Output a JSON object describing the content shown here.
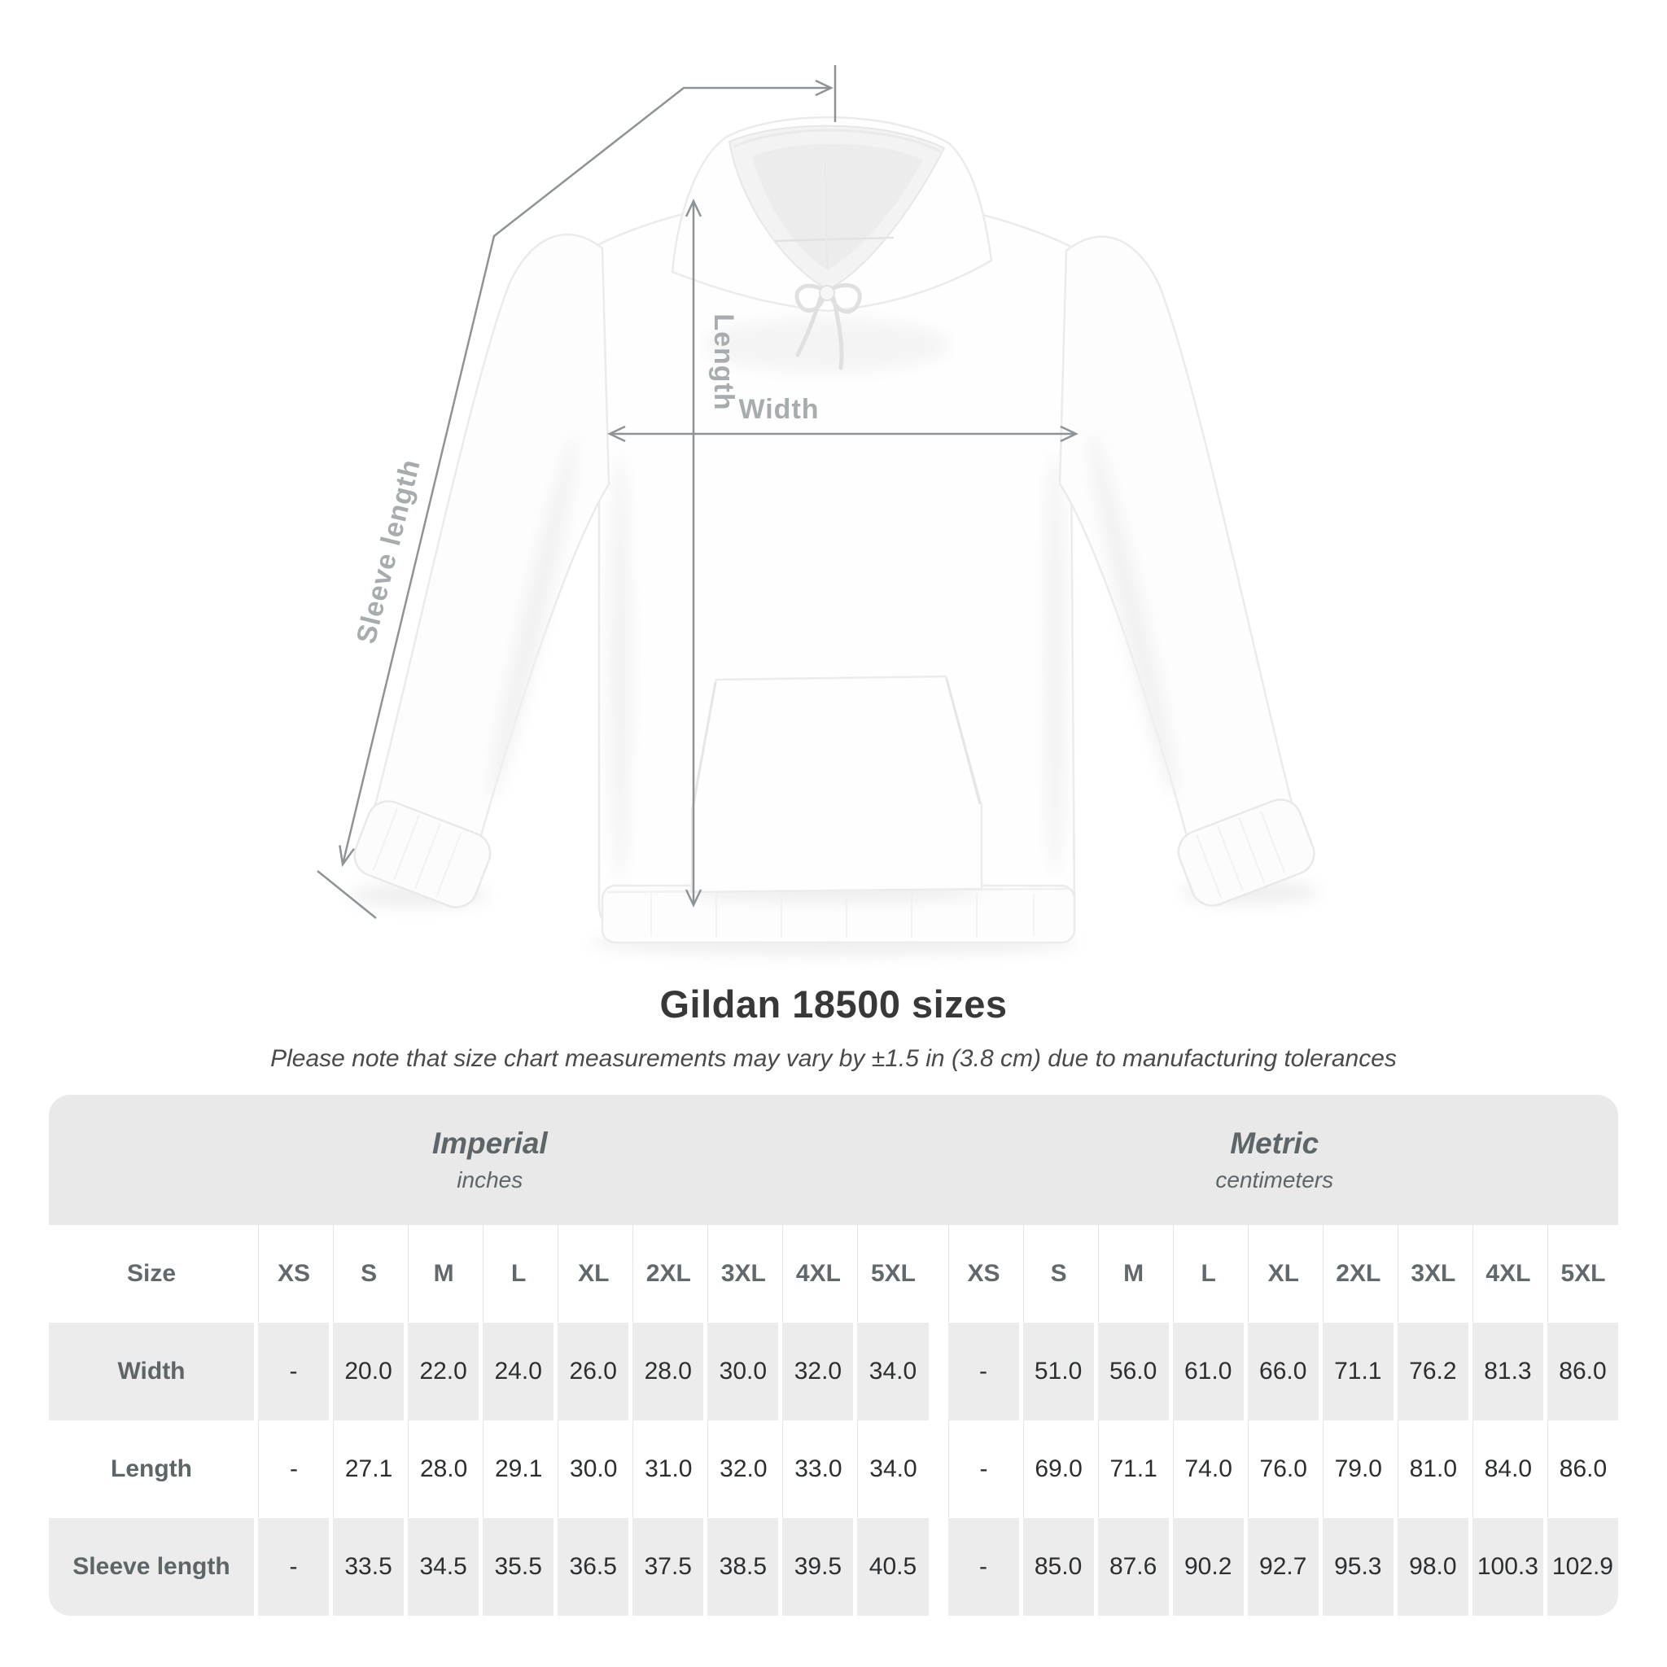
{
  "title": "Gildan 18500 sizes",
  "subtitle": "Please note that size chart measurements may vary by ±1.5 in (3.8 cm) due to manufacturing tolerances",
  "diagram": {
    "sleeve_length_label": "Sleeve length",
    "length_label": "Length",
    "width_label": "Width"
  },
  "table": {
    "size_header": "Size",
    "groups": [
      {
        "label": "Imperial",
        "sublabel": "inches"
      },
      {
        "label": "Metric",
        "sublabel": "centimeters"
      }
    ],
    "sizes": [
      "XS",
      "S",
      "M",
      "L",
      "XL",
      "2XL",
      "3XL",
      "4XL",
      "5XL"
    ],
    "rows": [
      {
        "label": "Width",
        "imperial": [
          "-",
          "20.0",
          "22.0",
          "24.0",
          "26.0",
          "28.0",
          "30.0",
          "32.0",
          "34.0"
        ],
        "metric": [
          "-",
          "51.0",
          "56.0",
          "61.0",
          "66.0",
          "71.1",
          "76.2",
          "81.3",
          "86.0"
        ]
      },
      {
        "label": "Length",
        "imperial": [
          "-",
          "27.1",
          "28.0",
          "29.1",
          "30.0",
          "31.0",
          "32.0",
          "33.0",
          "34.0"
        ],
        "metric": [
          "-",
          "69.0",
          "71.1",
          "74.0",
          "76.0",
          "79.0",
          "81.0",
          "84.0",
          "86.0"
        ]
      },
      {
        "label": "Sleeve length",
        "imperial": [
          "-",
          "33.5",
          "34.5",
          "35.5",
          "36.5",
          "37.5",
          "38.5",
          "39.5",
          "40.5"
        ],
        "metric": [
          "-",
          "85.0",
          "87.6",
          "90.2",
          "92.7",
          "95.3",
          "98.0",
          "100.3",
          "102.9"
        ]
      }
    ]
  },
  "colors": {
    "header_band": "#e9e9e9",
    "row_gray": "#ececec",
    "measure_line": "#8e9397",
    "measure_label": "#a7acaf",
    "title_text": "#383838",
    "subtitle_text": "#4a4a4a",
    "header_text": "#5d6569",
    "value_text": "#2c2f31"
  },
  "chart_data": {
    "type": "table",
    "title": "Gildan 18500 sizes",
    "tolerance_note": "±1.5 in (3.8 cm)",
    "columns": [
      "XS",
      "S",
      "M",
      "L",
      "XL",
      "2XL",
      "3XL",
      "4XL",
      "5XL"
    ],
    "units": [
      "inches",
      "centimeters"
    ],
    "rows": [
      {
        "measurement": "Width",
        "inches": [
          null,
          20.0,
          22.0,
          24.0,
          26.0,
          28.0,
          30.0,
          32.0,
          34.0
        ],
        "centimeters": [
          null,
          51.0,
          56.0,
          61.0,
          66.0,
          71.1,
          76.2,
          81.3,
          86.0
        ]
      },
      {
        "measurement": "Length",
        "inches": [
          null,
          27.1,
          28.0,
          29.1,
          30.0,
          31.0,
          32.0,
          33.0,
          34.0
        ],
        "centimeters": [
          null,
          69.0,
          71.1,
          74.0,
          76.0,
          79.0,
          81.0,
          84.0,
          86.0
        ]
      },
      {
        "measurement": "Sleeve length",
        "inches": [
          null,
          33.5,
          34.5,
          35.5,
          36.5,
          37.5,
          38.5,
          39.5,
          40.5
        ],
        "centimeters": [
          null,
          85.0,
          87.6,
          90.2,
          92.7,
          95.3,
          98.0,
          100.3,
          102.9
        ]
      }
    ]
  }
}
